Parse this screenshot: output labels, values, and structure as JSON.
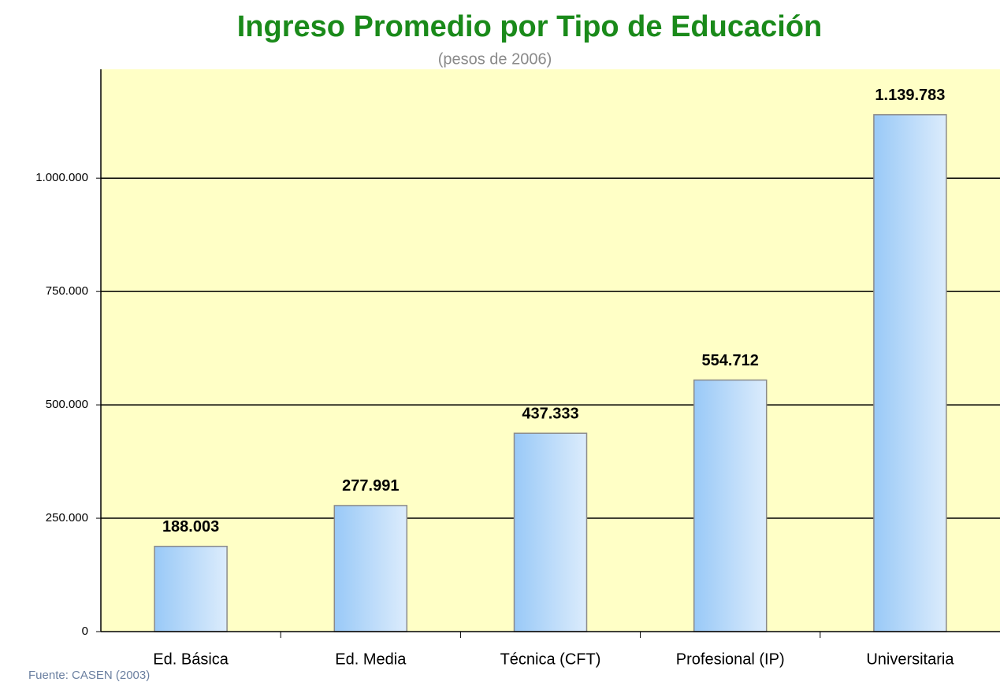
{
  "chart_data": {
    "type": "bar",
    "title": "Ingreso Promedio por Tipo de Educación",
    "subtitle": "(pesos de 2006)",
    "source": "Fuente: CASEN (2003)",
    "categories": [
      "Ed. Básica",
      "Ed. Media",
      "Técnica (CFT)",
      "Profesional (IP)",
      "Universitaria"
    ],
    "values": [
      188003,
      277991,
      437333,
      554712,
      1139783
    ],
    "value_labels": [
      "188.003",
      "277.991",
      "437.333",
      "554.712",
      "1.139.783"
    ],
    "color": "#99c9f7",
    "ylim": [
      0,
      1240000
    ],
    "yticks": [
      0,
      {
        "value": 250000,
        "label": "250.000"
      },
      {
        "value": 500000,
        "label": "500.000"
      },
      {
        "value": 750000,
        "label": "750.000"
      },
      {
        "value": 1000000,
        "label": "1.000.000"
      }
    ],
    "grid": true
  }
}
